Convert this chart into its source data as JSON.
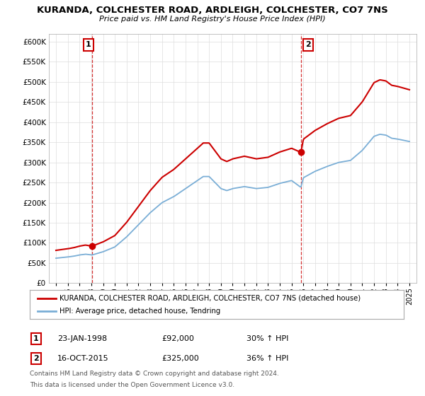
{
  "title": "KURANDA, COLCHESTER ROAD, ARDLEIGH, COLCHESTER, CO7 7NS",
  "subtitle": "Price paid vs. HM Land Registry's House Price Index (HPI)",
  "legend_line1": "KURANDA, COLCHESTER ROAD, ARDLEIGH, COLCHESTER, CO7 7NS (detached house)",
  "legend_line2": "HPI: Average price, detached house, Tendring",
  "annotation1_label": "1",
  "annotation1_date": "23-JAN-1998",
  "annotation1_price": "£92,000",
  "annotation1_hpi": "30% ↑ HPI",
  "annotation2_label": "2",
  "annotation2_date": "16-OCT-2015",
  "annotation2_price": "£325,000",
  "annotation2_hpi": "36% ↑ HPI",
  "footnote1": "Contains HM Land Registry data © Crown copyright and database right 2024.",
  "footnote2": "This data is licensed under the Open Government Licence v3.0.",
  "red_color": "#cc0000",
  "blue_color": "#7aaed6",
  "ylim_min": 0,
  "ylim_max": 620000,
  "sale1_year": 1998.07,
  "sale1_price": 92000,
  "sale2_year": 2015.79,
  "sale2_price": 325000,
  "xlim_min": 1994.4,
  "xlim_max": 2025.6
}
